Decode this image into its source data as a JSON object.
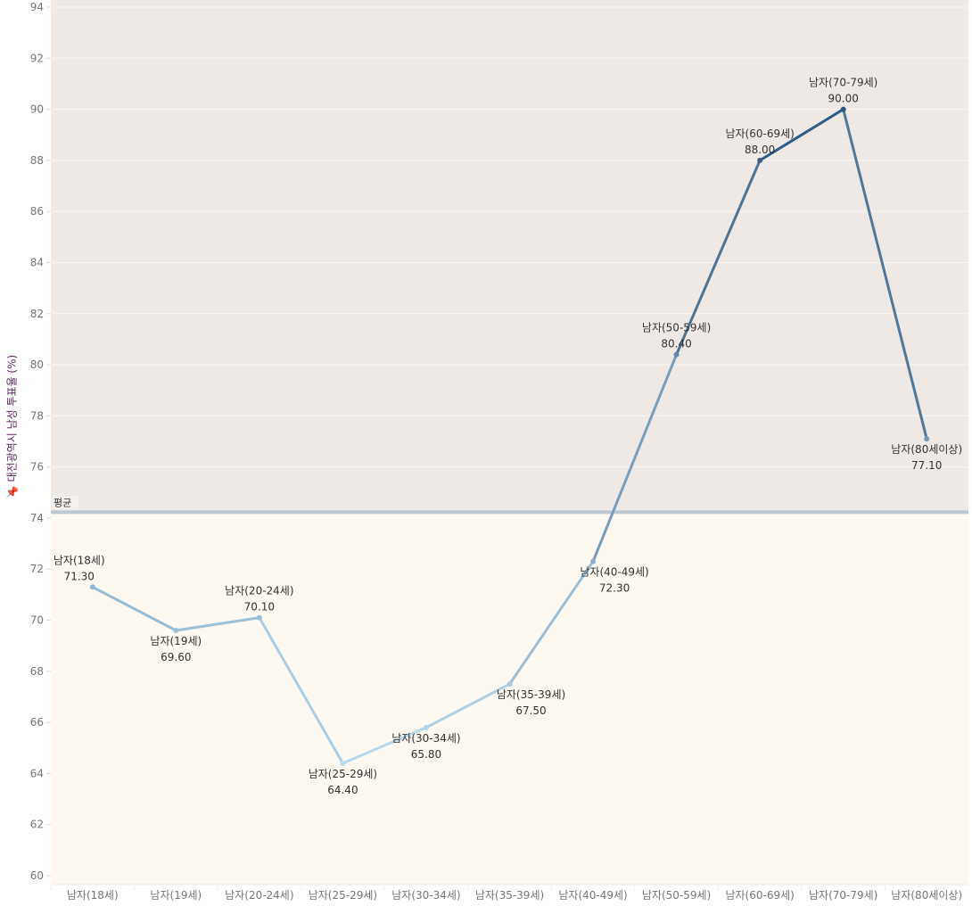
{
  "chart_data": {
    "type": "line",
    "title": "",
    "xlabel": "",
    "ylabel": "대전광역시 남성 투표율 (%)",
    "ylim": [
      60,
      94
    ],
    "yticks": [
      60,
      62,
      64,
      66,
      68,
      70,
      72,
      74,
      76,
      78,
      80,
      82,
      84,
      86,
      88,
      90,
      92,
      94
    ],
    "grid": true,
    "categories": [
      "남자(18세)",
      "남자(19세)",
      "남자(20-24세)",
      "남자(25-29세)",
      "남자(30-34세)",
      "남자(35-39세)",
      "남자(40-49세)",
      "남자(50-59세)",
      "남자(60-69세)",
      "남자(70-79세)",
      "남자(80세이상)"
    ],
    "values": [
      71.3,
      69.6,
      70.1,
      64.4,
      65.8,
      67.5,
      72.3,
      80.4,
      88.0,
      90.0,
      77.1
    ],
    "value_labels": [
      "71.30",
      "69.60",
      "70.10",
      "64.40",
      "65.80",
      "67.50",
      "72.30",
      "80.40",
      "88.00",
      "90.00",
      "77.10"
    ],
    "reference_line": {
      "label": "평균",
      "value": 74.23
    },
    "colors": {
      "low": "#b9dcef",
      "high": "#2a5783",
      "band_above": "#efe9e6",
      "band_below": "#fdf8f0",
      "ref_line": "#bcc8d4"
    }
  }
}
